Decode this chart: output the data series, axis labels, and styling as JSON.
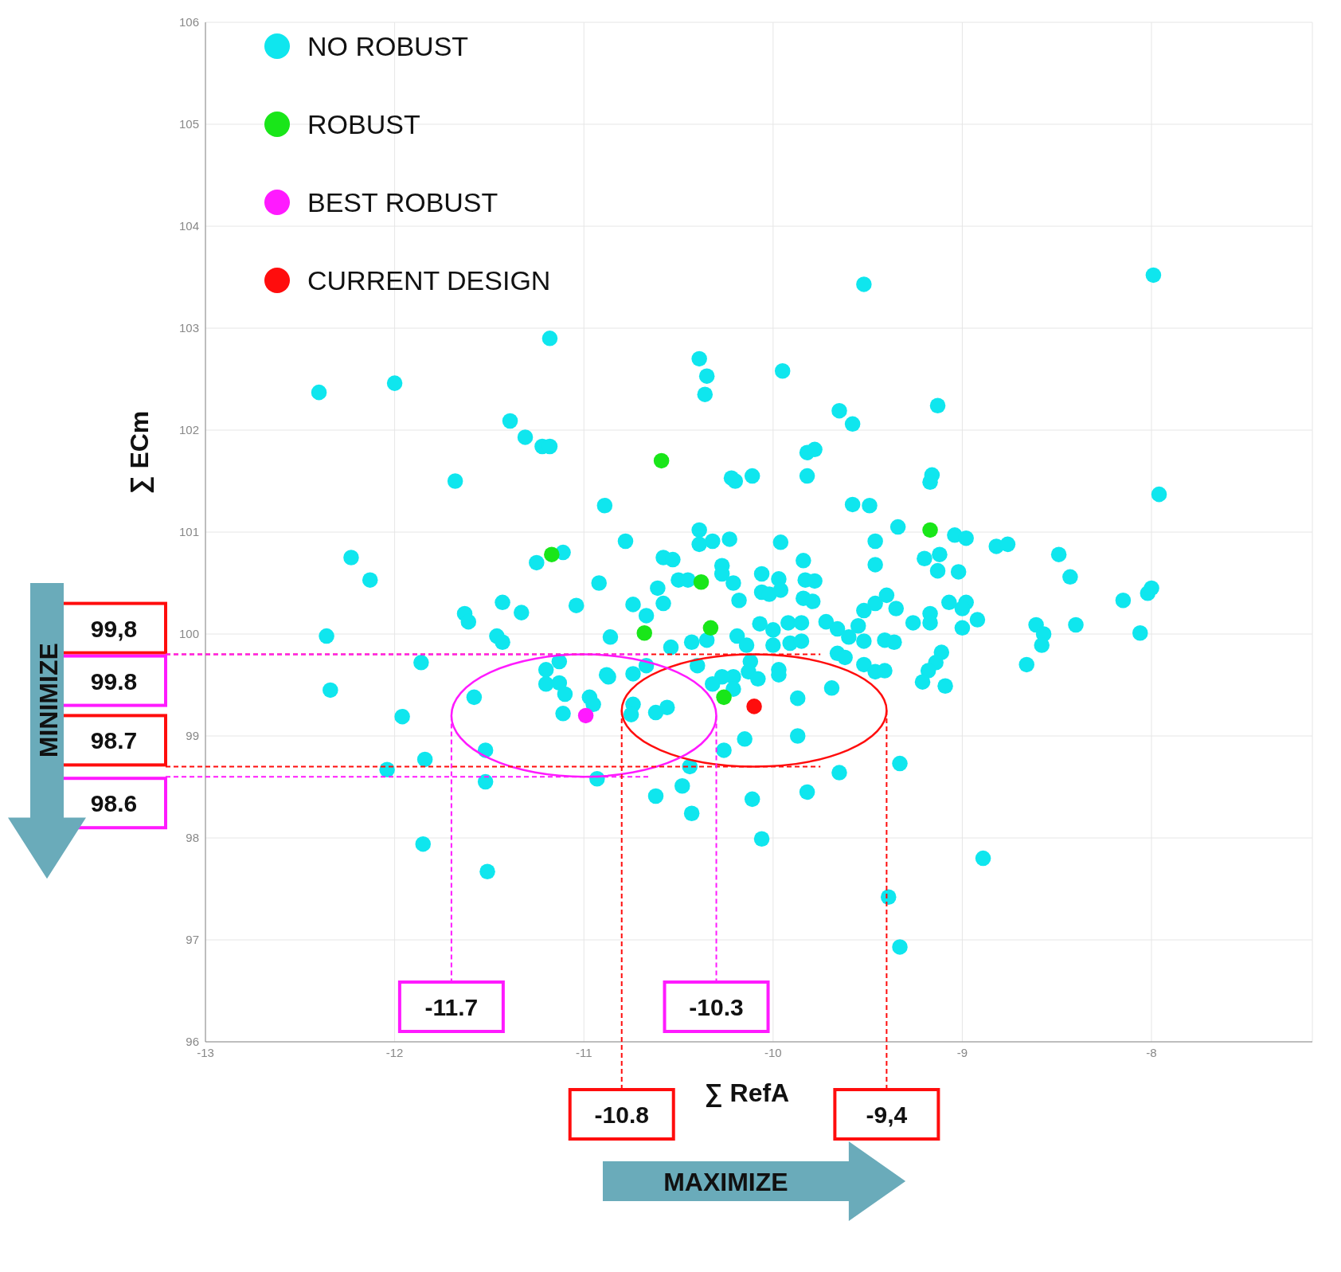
{
  "chart_data": {
    "type": "scatter",
    "xlabel": "∑ RefA",
    "ylabel": "∑ ECm",
    "xlim": [
      -13,
      -7.15
    ],
    "ylim": [
      96,
      106
    ],
    "xticks": [
      -13,
      -12,
      -11,
      -10,
      -9,
      -8
    ],
    "yticks": [
      96,
      97,
      98,
      99,
      100,
      101,
      102,
      103,
      104,
      105,
      106
    ],
    "grid": true,
    "legend": "top left",
    "marker": "circle",
    "series": [
      {
        "name": "NO ROBUST",
        "color": "#0fe6ee",
        "x": [
          -7.99,
          -9.52,
          -11.18,
          -10.39,
          -10.35,
          -10.36,
          -9.95,
          -12.4,
          -12.0,
          -11.39,
          -11.31,
          -11.22,
          -11.18,
          -9.65,
          -9.58,
          -9.13,
          -11.68,
          -10.22,
          -10.2,
          -10.11,
          -9.82,
          -9.78,
          -9.82,
          -9.16,
          -9.17,
          -7.96,
          -10.89,
          -9.58,
          -9.49,
          -9.34,
          -9.04,
          -8.98,
          -10.39,
          -10.32,
          -10.23,
          -10.39,
          -10.78,
          -9.96,
          -9.46,
          -12.23,
          -12.13,
          -11.25,
          -11.11,
          -10.58,
          -10.53,
          -10.27,
          -9.84,
          -9.46,
          -9.2,
          -9.12,
          -8.82,
          -8.76,
          -8.49,
          -8.43,
          -9.13,
          -9.02,
          -10.92,
          -10.61,
          -10.5,
          -10.45,
          -10.27,
          -10.21,
          -10.06,
          -9.97,
          -9.83,
          -9.78,
          -10.06,
          -10.02,
          -9.96,
          -10.18,
          -10.58,
          -10.74,
          -11.04,
          -11.43,
          -11.33,
          -11.63,
          -11.61,
          -10.67,
          -10.32,
          -9.84,
          -9.79,
          -9.4,
          -9.46,
          -9.35,
          -9.52,
          -9.17,
          -9.07,
          -8.98,
          -9.0,
          -8.92,
          -9.0,
          -9.26,
          -9.17,
          -8.15,
          -8.02,
          -8.0,
          -8.06,
          -8.61,
          -8.57,
          -8.58,
          -8.4,
          -8.66,
          -12.36,
          -11.46,
          -11.43,
          -10.86,
          -10.54,
          -10.43,
          -10.35,
          -10.19,
          -10.07,
          -10.0,
          -9.92,
          -9.85,
          -9.72,
          -9.66,
          -9.6,
          -9.55,
          -9.52,
          -9.41,
          -9.36,
          -10.14,
          -10.0,
          -9.91,
          -9.85,
          -9.66,
          -9.62,
          -9.52,
          -9.46,
          -9.41,
          -9.11,
          -9.14,
          -9.18,
          -9.21,
          -9.09,
          -9.97,
          -9.97,
          -10.12,
          -10.13,
          -10.08,
          -10.21,
          -10.27,
          -10.32,
          -10.21,
          -9.69,
          -9.87,
          -11.86,
          -12.34,
          -11.58,
          -11.96,
          -11.2,
          -11.13,
          -11.2,
          -11.13,
          -11.1,
          -10.88,
          -10.87,
          -10.74,
          -10.67,
          -10.97,
          -10.95,
          -11.11,
          -10.74,
          -10.75,
          -10.62,
          -10.56,
          -10.4,
          -10.15,
          -10.26,
          -9.87,
          -11.52,
          -11.84,
          -12.04,
          -11.52,
          -10.93,
          -10.44,
          -10.48,
          -10.62,
          -10.43,
          -10.11,
          -9.82,
          -9.65,
          -9.33,
          -10.06,
          -11.85,
          -11.51,
          -8.89,
          -9.39,
          -9.33
        ],
        "values": [
          103.52,
          103.43,
          102.9,
          102.7,
          102.53,
          102.35,
          102.58,
          102.37,
          102.46,
          102.09,
          101.93,
          101.84,
          101.84,
          102.19,
          102.06,
          102.24,
          101.5,
          101.53,
          101.5,
          101.55,
          101.78,
          101.81,
          101.55,
          101.56,
          101.49,
          101.37,
          101.26,
          101.27,
          101.26,
          101.05,
          100.97,
          100.94,
          101.02,
          100.91,
          100.93,
          100.88,
          100.91,
          100.9,
          100.91,
          100.75,
          100.53,
          100.7,
          100.8,
          100.75,
          100.73,
          100.67,
          100.72,
          100.68,
          100.74,
          100.78,
          100.86,
          100.88,
          100.78,
          100.56,
          100.62,
          100.61,
          100.5,
          100.45,
          100.53,
          100.53,
          100.59,
          100.5,
          100.59,
          100.54,
          100.53,
          100.52,
          100.41,
          100.39,
          100.43,
          100.33,
          100.3,
          100.29,
          100.28,
          100.31,
          100.21,
          100.2,
          100.12,
          100.18,
          null,
          100.35,
          100.32,
          100.38,
          100.3,
          100.25,
          100.23,
          100.2,
          100.31,
          100.31,
          100.25,
          100.14,
          100.06,
          100.11,
          100.11,
          100.33,
          100.4,
          100.45,
          100.01,
          100.09,
          100.0,
          99.89,
          100.09,
          99.7,
          99.98,
          99.98,
          99.92,
          99.97,
          99.87,
          99.92,
          99.94,
          99.98,
          100.1,
          100.04,
          100.11,
          100.11,
          100.12,
          100.05,
          99.97,
          100.08,
          99.93,
          99.94,
          99.92,
          99.89,
          99.89,
          99.91,
          99.93,
          99.81,
          99.77,
          99.7,
          99.63,
          99.64,
          99.82,
          99.72,
          99.64,
          99.53,
          99.49,
          99.65,
          99.6,
          99.73,
          99.63,
          99.56,
          99.58,
          99.58,
          99.51,
          99.46,
          99.47,
          99.37,
          99.72,
          99.45,
          99.38,
          99.19,
          99.65,
          99.73,
          99.51,
          99.52,
          99.41,
          99.6,
          99.58,
          99.61,
          99.69,
          99.38,
          99.31,
          99.22,
          99.31,
          99.21,
          99.23,
          99.28,
          99.69,
          98.97,
          98.86,
          99.0,
          98.86,
          98.77,
          98.67,
          98.55,
          98.58,
          98.7,
          98.51,
          98.41,
          98.24,
          98.38,
          98.45,
          98.64,
          98.73,
          97.99,
          97.94,
          97.67,
          97.8,
          97.42,
          96.93
        ]
      },
      {
        "name": "ROBUST",
        "color": "#19e619",
        "x": [
          -10.59,
          -11.17,
          -9.17,
          -10.38,
          -10.68,
          -10.33,
          -10.26
        ],
        "values": [
          101.7,
          100.78,
          101.02,
          100.51,
          100.01,
          100.06,
          99.38
        ]
      },
      {
        "name": "BEST ROBUST",
        "color": "#ff1aff",
        "x": [
          -10.99
        ],
        "values": [
          99.2
        ]
      },
      {
        "name": "CURRENT DESIGN",
        "color": "#ff0d0d",
        "x": [
          -10.1
        ],
        "values": [
          99.29
        ]
      }
    ],
    "ref_lines": [
      {
        "axis": "y",
        "value": 99.8,
        "label": "99,8",
        "color": "#ff0d0d",
        "line_style": "dashed"
      },
      {
        "axis": "y",
        "value": 99.8,
        "label": "99.8",
        "color": "#ff1aff",
        "line_style": "dashed"
      },
      {
        "axis": "y",
        "value": 98.7,
        "label": "98.7",
        "color": "#ff0d0d",
        "line_style": "dashed"
      },
      {
        "axis": "y",
        "value": 98.6,
        "label": "98.6",
        "color": "#ff1aff",
        "line_style": "dashed"
      },
      {
        "axis": "x",
        "value": -11.7,
        "label": "-11.7",
        "color": "#ff1aff",
        "line_style": "dashed"
      },
      {
        "axis": "x",
        "value": -10.3,
        "label": "-10.3",
        "color": "#ff1aff",
        "line_style": "dashed"
      },
      {
        "axis": "x",
        "value": -10.8,
        "label": "-10.8",
        "color": "#ff0d0d",
        "line_style": "dashed"
      },
      {
        "axis": "x",
        "value": -9.4,
        "label": "-9,4",
        "color": "#ff0d0d",
        "line_style": "dashed"
      }
    ],
    "annotations": [
      "MINIMIZE",
      "MAXIMIZE"
    ]
  }
}
